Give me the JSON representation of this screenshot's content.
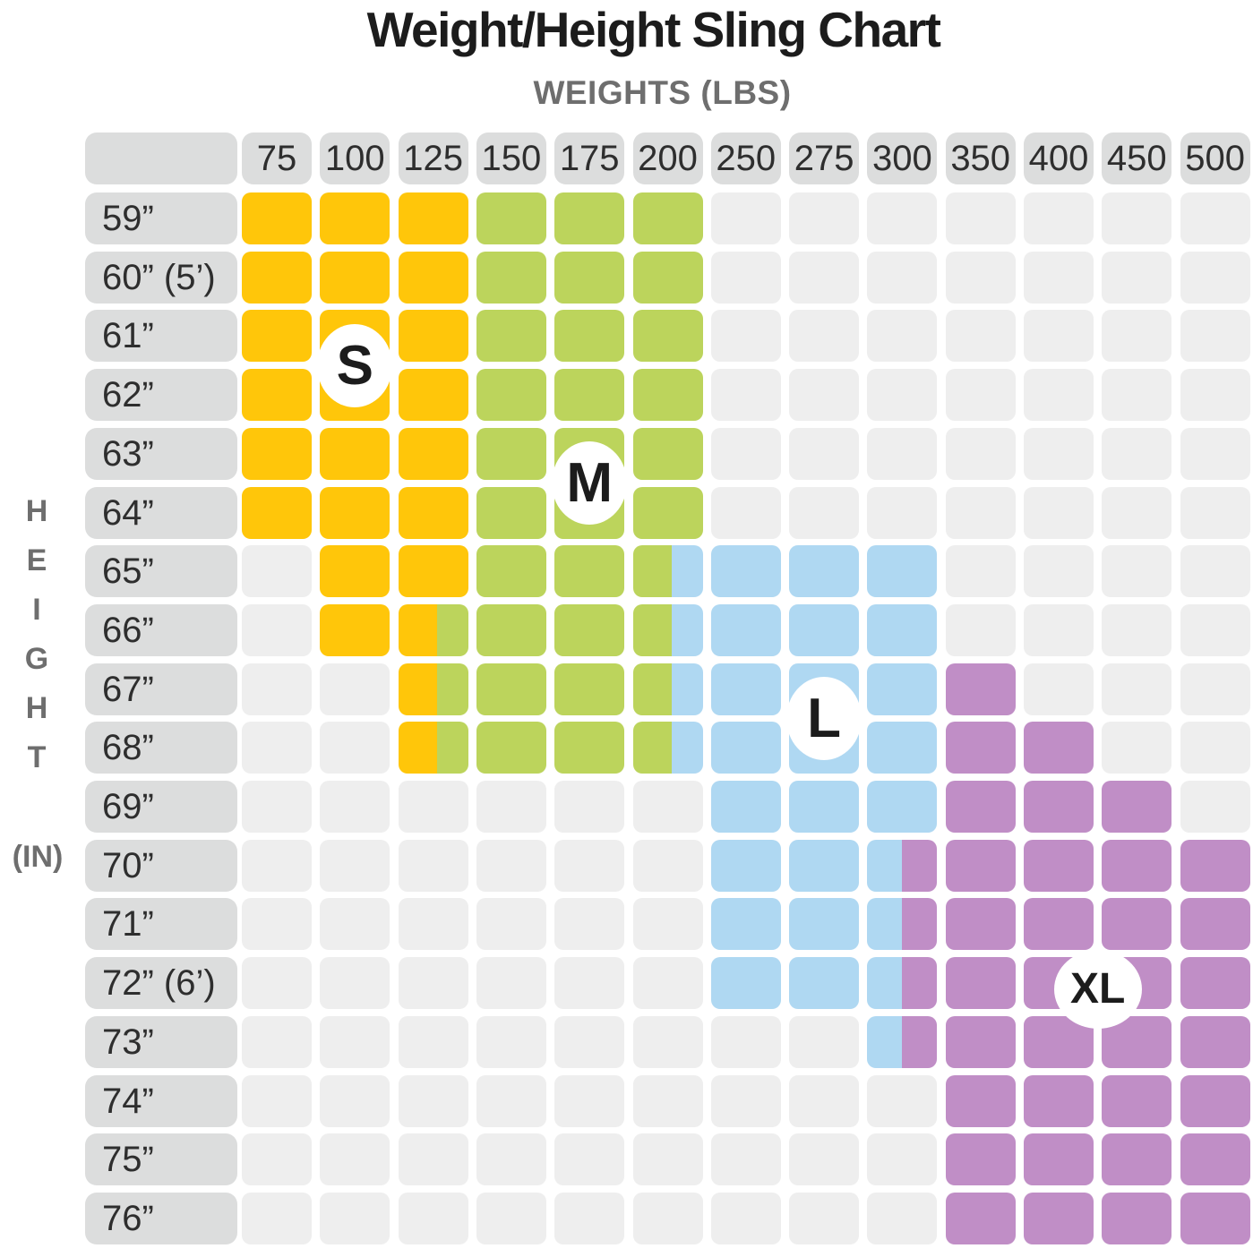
{
  "title": "Weight/Height Sling Chart",
  "x_axis": {
    "title": "WEIGHTS (LBS)",
    "columns": [
      "75",
      "100",
      "125",
      "150",
      "175",
      "200",
      "250",
      "275",
      "300",
      "350",
      "400",
      "450",
      "500"
    ]
  },
  "y_axis": {
    "title": "HEIGHT",
    "unit": "(IN)",
    "rows": [
      "59”",
      "60” (5’)",
      "61”",
      "62”",
      "63”",
      "64”",
      "65”",
      "66”",
      "67”",
      "68”",
      "69”",
      "70”",
      "71”",
      "72” (6’)",
      "73”",
      "74”",
      "75”",
      "76”"
    ]
  },
  "markers": [
    {
      "label": "S",
      "col": 1,
      "row": 2.5
    },
    {
      "label": "M",
      "col": 4,
      "row": 4.5
    },
    {
      "label": "L",
      "col": 7,
      "row": 8.5
    },
    {
      "label": "XL",
      "col": 10.5,
      "row": 13.1
    }
  ],
  "colors": {
    "S": "#FFC60A",
    "M": "#BCD45C",
    "L": "#AFD8F2",
    "XL": "#C08EC6",
    "empty_cell": "#EEEEEE",
    "header_cell": "#DCDDDD",
    "title_text": "#1C1C1C",
    "axis_text": "#6E6E6E",
    "label_text": "#2E2E2E",
    "marker_bg": "#FFFFFF",
    "marker_text": "#1C1C1C"
  },
  "split_pcts": {
    "S/M": 55,
    "M/L": 55,
    "L/XL": 50
  },
  "chart_data": {
    "type": "heatmap",
    "title": "Weight/Height Sling Chart",
    "xlabel": "WEIGHTS (LBS)",
    "ylabel": "HEIGHT (IN)",
    "x_categories": [
      75,
      100,
      125,
      150,
      175,
      200,
      250,
      275,
      300,
      350,
      400,
      450,
      500
    ],
    "y_categories": [
      "59",
      "60 (5')",
      "61",
      "62",
      "63",
      "64",
      "65",
      "66",
      "67",
      "68",
      "69",
      "70",
      "71",
      "72 (6')",
      "73",
      "74",
      "75",
      "76"
    ],
    "zones": [
      "S",
      "M",
      "L",
      "XL"
    ],
    "legend_position": "inline-markers",
    "grid": true,
    "matrix": [
      [
        "S",
        "S",
        "S",
        "M",
        "M",
        "M",
        "",
        "",
        "",
        "",
        "",
        "",
        ""
      ],
      [
        "S",
        "S",
        "S",
        "M",
        "M",
        "M",
        "",
        "",
        "",
        "",
        "",
        "",
        ""
      ],
      [
        "S",
        "S",
        "S",
        "M",
        "M",
        "M",
        "",
        "",
        "",
        "",
        "",
        "",
        ""
      ],
      [
        "S",
        "S",
        "S",
        "M",
        "M",
        "M",
        "",
        "",
        "",
        "",
        "",
        "",
        ""
      ],
      [
        "S",
        "S",
        "S",
        "M",
        "M",
        "M",
        "",
        "",
        "",
        "",
        "",
        "",
        ""
      ],
      [
        "S",
        "S",
        "S",
        "M",
        "M",
        "M",
        "",
        "",
        "",
        "",
        "",
        "",
        ""
      ],
      [
        "",
        "S",
        "S",
        "M",
        "M",
        "M/L",
        "L",
        "L",
        "L",
        "",
        "",
        "",
        ""
      ],
      [
        "",
        "S",
        "S/M",
        "M",
        "M",
        "M/L",
        "L",
        "L",
        "L",
        "",
        "",
        "",
        ""
      ],
      [
        "",
        "",
        "S/M",
        "M",
        "M",
        "M/L",
        "L",
        "L",
        "L",
        "XL",
        "",
        "",
        ""
      ],
      [
        "",
        "",
        "S/M",
        "M",
        "M",
        "M/L",
        "L",
        "L",
        "L",
        "XL",
        "XL",
        "",
        ""
      ],
      [
        "",
        "",
        "",
        "",
        "",
        "",
        "L",
        "L",
        "L",
        "XL",
        "XL",
        "XL",
        ""
      ],
      [
        "",
        "",
        "",
        "",
        "",
        "",
        "L",
        "L",
        "L/XL",
        "XL",
        "XL",
        "XL",
        "XL"
      ],
      [
        "",
        "",
        "",
        "",
        "",
        "",
        "L",
        "L",
        "L/XL",
        "XL",
        "XL",
        "XL",
        "XL"
      ],
      [
        "",
        "",
        "",
        "",
        "",
        "",
        "L",
        "L",
        "L/XL",
        "XL",
        "XL",
        "XL",
        "XL"
      ],
      [
        "",
        "",
        "",
        "",
        "",
        "",
        "",
        "",
        "L/XL",
        "XL",
        "XL",
        "XL",
        "XL"
      ],
      [
        "",
        "",
        "",
        "",
        "",
        "",
        "",
        "",
        "",
        "XL",
        "XL",
        "XL",
        "XL"
      ],
      [
        "",
        "",
        "",
        "",
        "",
        "",
        "",
        "",
        "",
        "XL",
        "XL",
        "XL",
        "XL"
      ],
      [
        "",
        "",
        "",
        "",
        "",
        "",
        "",
        "",
        "",
        "XL",
        "XL",
        "XL",
        "XL"
      ]
    ]
  }
}
